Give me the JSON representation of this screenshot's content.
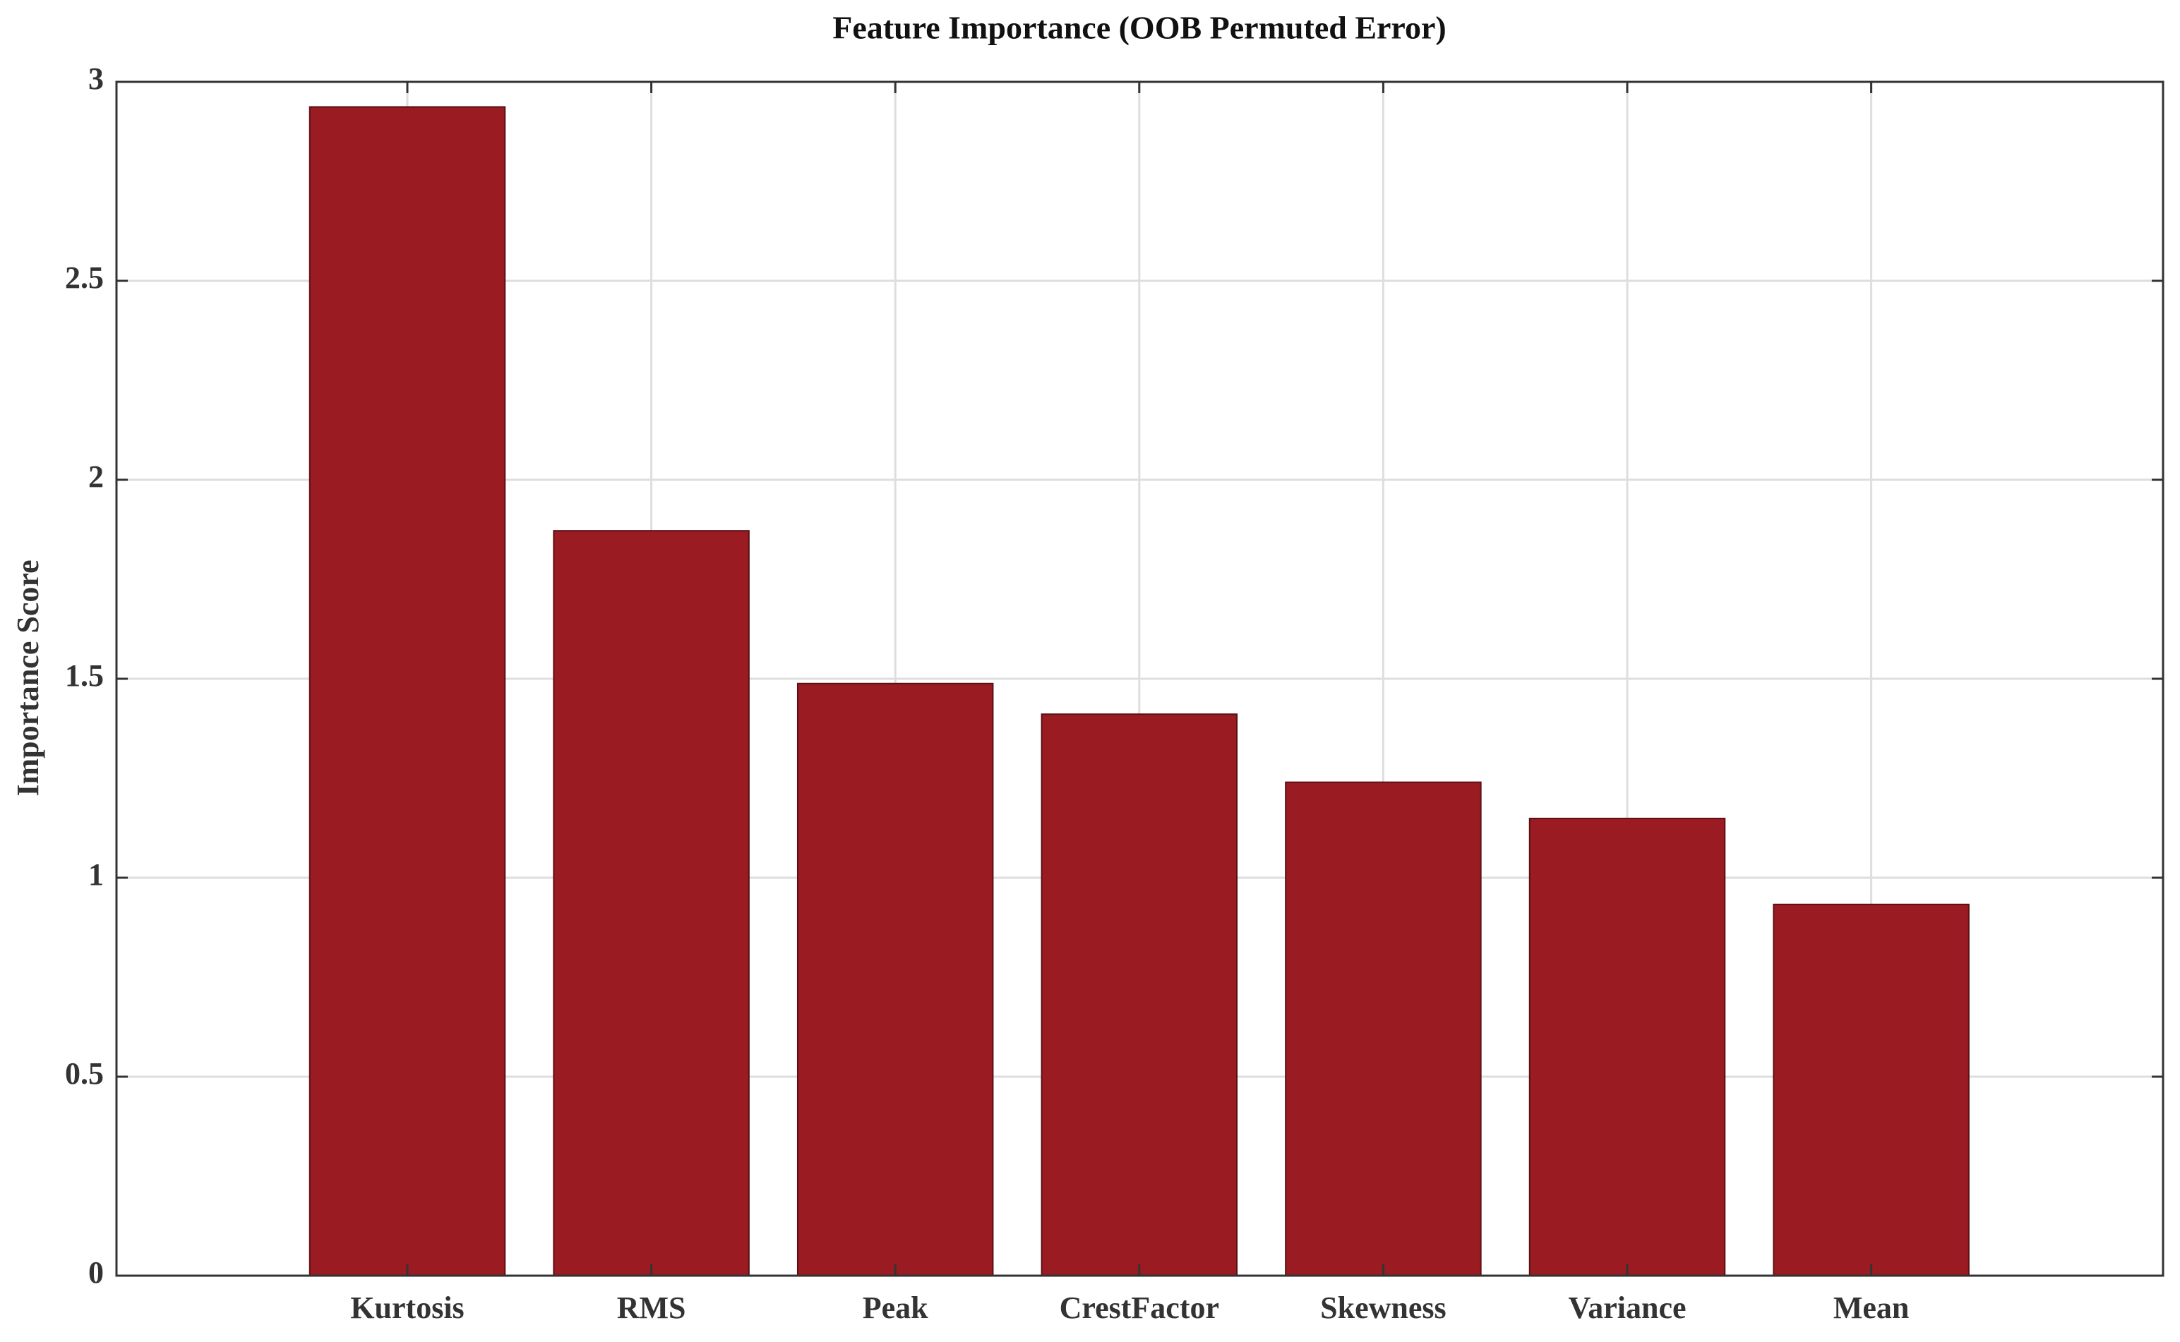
{
  "chart_data": {
    "type": "bar",
    "title": "Feature Importance (OOB Permuted Error)",
    "y_label": "Importance Score",
    "categories": [
      "Kurtosis",
      "RMS",
      "Peak",
      "CrestFactor",
      "Skewness",
      "Variance",
      "Mean"
    ],
    "values": [
      2.937,
      1.872,
      1.488,
      1.411,
      1.24,
      1.149,
      0.933
    ],
    "color": "#9b1b22",
    "ylim": [
      0,
      3
    ],
    "yticks": [
      0,
      0.5,
      1,
      1.5,
      2,
      2.5,
      3
    ],
    "grid": true
  }
}
